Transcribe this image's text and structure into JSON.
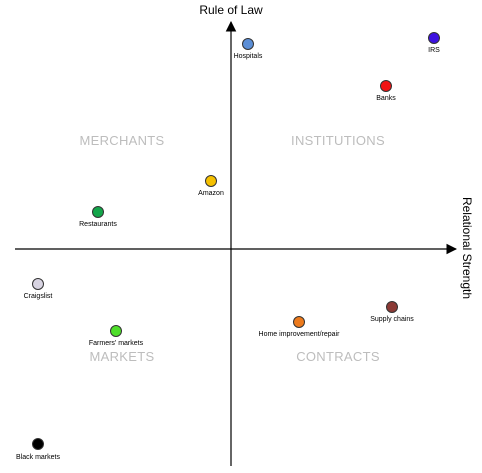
{
  "axes": {
    "y_title": "Rule of Law",
    "x_title": "Relational Strength"
  },
  "quadrants": {
    "top_left": "MERCHANTS",
    "top_right": "INSTITUTIONS",
    "bottom_left": "MARKETS",
    "bottom_right": "CONTRACTS"
  },
  "points": [
    {
      "label": "Hospitals",
      "color": "#5b8ed6"
    },
    {
      "label": "IRS",
      "color": "#3d12e0"
    },
    {
      "label": "Banks",
      "color": "#f01414"
    },
    {
      "label": "Amazon",
      "color": "#f5c000"
    },
    {
      "label": "Restaurants",
      "color": "#13a54a"
    },
    {
      "label": "Craigslist",
      "color": "#d8d4e2"
    },
    {
      "label": "Farmers' markets",
      "color": "#4ede2a"
    },
    {
      "label": "Supply chains",
      "color": "#8b3a35"
    },
    {
      "label": "Home improvement/repair",
      "color": "#ec7a1c"
    },
    {
      "label": "Black markets",
      "color": "#000000"
    }
  ]
}
